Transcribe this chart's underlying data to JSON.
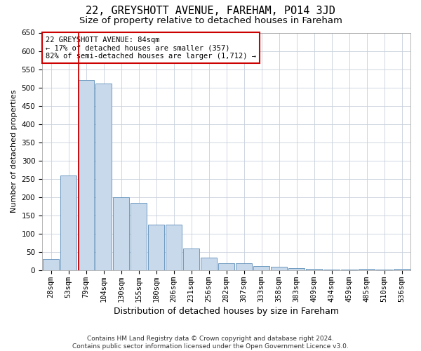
{
  "title": "22, GREYSHOTT AVENUE, FAREHAM, PO14 3JD",
  "subtitle": "Size of property relative to detached houses in Fareham",
  "xlabel": "Distribution of detached houses by size in Fareham",
  "ylabel": "Number of detached properties",
  "footer_line1": "Contains HM Land Registry data © Crown copyright and database right 2024.",
  "footer_line2": "Contains public sector information licensed under the Open Government Licence v3.0.",
  "categories": [
    "28sqm",
    "53sqm",
    "79sqm",
    "104sqm",
    "130sqm",
    "155sqm",
    "180sqm",
    "206sqm",
    "231sqm",
    "256sqm",
    "282sqm",
    "307sqm",
    "333sqm",
    "358sqm",
    "383sqm",
    "409sqm",
    "434sqm",
    "459sqm",
    "485sqm",
    "510sqm",
    "536sqm"
  ],
  "values": [
    30,
    260,
    520,
    510,
    200,
    185,
    125,
    125,
    60,
    35,
    20,
    20,
    12,
    9,
    6,
    3,
    1,
    1,
    4,
    1,
    4
  ],
  "bar_color": "#c9d9ec",
  "bar_edge_color": "#5b8db8",
  "vline_color": "#cc0000",
  "vline_pos": 1.575,
  "annotation_text": "22 GREYSHOTT AVENUE: 84sqm\n← 17% of detached houses are smaller (357)\n82% of semi-detached houses are larger (1,712) →",
  "annotation_box_color": "#cc0000",
  "ylim": [
    0,
    650
  ],
  "yticks": [
    0,
    50,
    100,
    150,
    200,
    250,
    300,
    350,
    400,
    450,
    500,
    550,
    600,
    650
  ],
  "grid_color": "#c8d0dc",
  "background_color": "#ffffff",
  "title_fontsize": 11,
  "subtitle_fontsize": 9.5,
  "xlabel_fontsize": 9,
  "ylabel_fontsize": 8,
  "tick_fontsize": 7.5,
  "annotation_fontsize": 7.5,
  "footer_fontsize": 6.5
}
